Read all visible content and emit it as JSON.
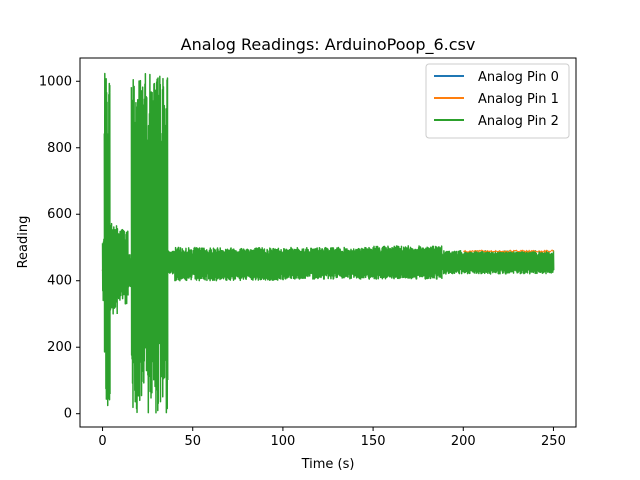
{
  "chart_data": {
    "type": "line",
    "title": "Analog Readings: ArduinoPoop_6.csv",
    "xlabel": "Time (s)",
    "ylabel": "Reading",
    "xlim": [
      -12.5,
      262.5
    ],
    "ylim": [
      -40,
      1070
    ],
    "x_ticks": [
      0,
      50,
      100,
      150,
      200,
      250
    ],
    "y_ticks": [
      0,
      200,
      400,
      600,
      800,
      1000
    ],
    "grid": false,
    "legend_position": "top-right",
    "series": [
      {
        "name": "Analog Pin 0",
        "color": "#1f77b4",
        "x": [
          0,
          2,
          4,
          10,
          20,
          35,
          40,
          60,
          100,
          150,
          180,
          190,
          200,
          220,
          240,
          250
        ],
        "y": [
          430,
          500,
          420,
          470,
          450,
          460,
          460,
          455,
          450,
          450,
          448,
          455,
          455,
          455,
          455,
          455
        ]
      },
      {
        "name": "Analog Pin 1",
        "color": "#ff7f0e",
        "x": [
          0,
          2,
          4,
          10,
          20,
          35,
          40,
          60,
          100,
          150,
          180,
          190,
          200,
          220,
          240,
          250
        ],
        "y": [
          430,
          500,
          420,
          470,
          450,
          460,
          460,
          455,
          450,
          450,
          448,
          458,
          460,
          462,
          462,
          462
        ]
      },
      {
        "name": "Analog Pin 2",
        "color": "#2ca02c",
        "segments": [
          {
            "x_start": 0,
            "x_end": 1,
            "y_min": 340,
            "y_max": 530
          },
          {
            "x_start": 1,
            "x_end": 4,
            "y_min": 0,
            "y_max": 1025
          },
          {
            "x_start": 4,
            "x_end": 8,
            "y_min": 290,
            "y_max": 580
          },
          {
            "x_start": 8,
            "x_end": 14,
            "y_min": 330,
            "y_max": 560
          },
          {
            "x_start": 14,
            "x_end": 16,
            "y_min": 380,
            "y_max": 480
          },
          {
            "x_start": 16,
            "x_end": 36,
            "y_min": 0,
            "y_max": 1025
          },
          {
            "x_start": 36,
            "x_end": 40,
            "y_min": 420,
            "y_max": 490
          },
          {
            "x_start": 40,
            "x_end": 60,
            "y_min": 400,
            "y_max": 500
          },
          {
            "x_start": 60,
            "x_end": 100,
            "y_min": 400,
            "y_max": 500
          },
          {
            "x_start": 100,
            "x_end": 150,
            "y_min": 405,
            "y_max": 500
          },
          {
            "x_start": 150,
            "x_end": 188,
            "y_min": 405,
            "y_max": 505
          },
          {
            "x_start": 188,
            "x_end": 200,
            "y_min": 420,
            "y_max": 490
          },
          {
            "x_start": 200,
            "x_end": 250,
            "y_min": 420,
            "y_max": 490
          }
        ]
      }
    ]
  }
}
